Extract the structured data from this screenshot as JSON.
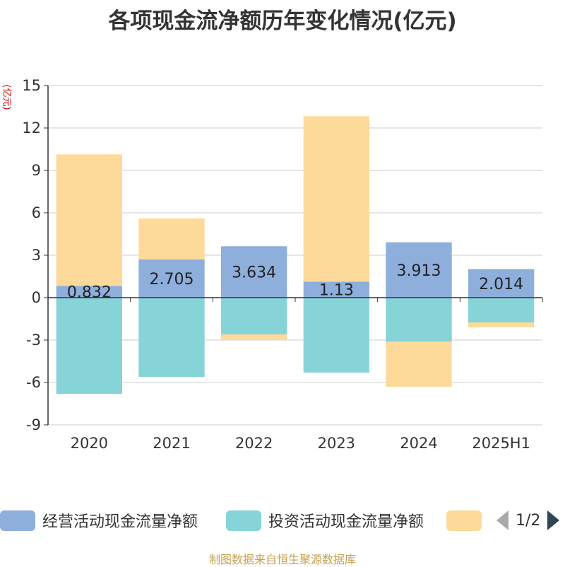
{
  "title": "各项现金流净额历年变化情况(亿元)",
  "unit_label": "(亿元)",
  "source": "制图数据来自恒生聚源数据库",
  "legend": {
    "items": [
      {
        "label": "经营活动现金流量净额",
        "color": "#8eaedc"
      },
      {
        "label": "投资活动现金流量净额",
        "color": "#86d4d8"
      },
      {
        "label": "",
        "color": "#fdd99a"
      }
    ],
    "page": "1/2"
  },
  "chart_data": {
    "type": "bar",
    "stacked": true,
    "categories": [
      "2020",
      "2021",
      "2022",
      "2023",
      "2024",
      "2025H1"
    ],
    "series": [
      {
        "name": "经营活动现金流量净额",
        "color": "#8eaedc",
        "values": [
          0.832,
          2.705,
          3.634,
          1.13,
          3.913,
          2.014
        ],
        "labels": [
          "0.832",
          "2.705",
          "3.634",
          "1.13",
          "3.913",
          "2.014"
        ]
      },
      {
        "name": "投资活动现金流量净额",
        "color": "#86d4d8",
        "values": [
          -6.8,
          -5.6,
          -2.6,
          -5.3,
          -3.1,
          -1.75
        ]
      },
      {
        "color": "#fdd99a",
        "values": [
          9.3,
          2.9,
          -0.4,
          11.7,
          -3.2,
          -0.35
        ]
      }
    ],
    "yticks": [
      "15",
      "12",
      "9",
      "6",
      "3",
      "0",
      "-3",
      "-6",
      "-9"
    ],
    "ylim": [
      -9,
      15
    ],
    "grid": true,
    "legend_position": "bottom"
  }
}
